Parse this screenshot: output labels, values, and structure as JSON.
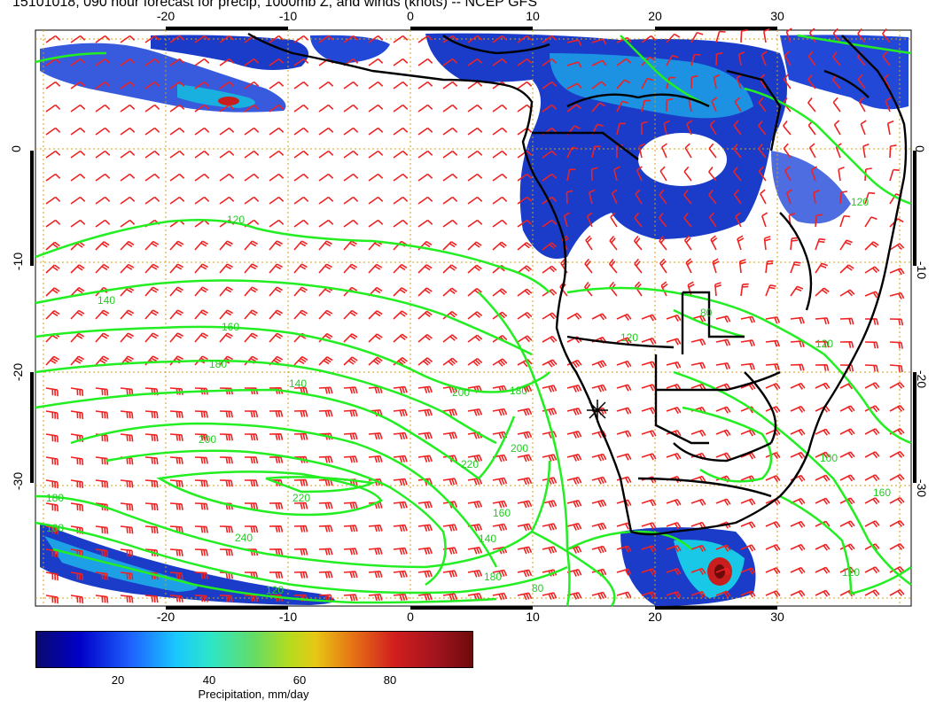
{
  "title": "15101018, 090 hour forecast for precip, 1000mb Z, and winds (knots) -- NCEP GFS",
  "lon_ticks": [
    "-20",
    "-10",
    "0",
    "10",
    "20",
    "30"
  ],
  "lat_ticks": [
    "0",
    "-10",
    "-20",
    "-30"
  ],
  "colorbar": {
    "ticks": [
      "20",
      "40",
      "60",
      "80"
    ],
    "label": "Precipitation, mm/day"
  },
  "contour_labels": [
    "120",
    "140",
    "160",
    "180",
    "140",
    "200",
    "220",
    "240",
    "200",
    "180",
    "160",
    "140",
    "120",
    "180",
    "160",
    "200",
    "220",
    "180",
    "80",
    "120",
    "160",
    "120",
    "100",
    "120",
    "80",
    "120"
  ],
  "colors": {
    "contour": "#22ee22",
    "barb": "#ee2222",
    "coast": "#000000",
    "grid": "#d4a017"
  }
}
